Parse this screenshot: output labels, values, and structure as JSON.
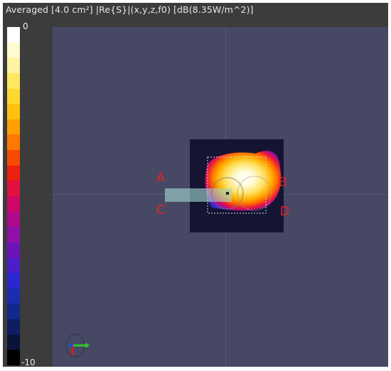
{
  "title": "Averaged [4.0 cm²] |Re{S}|(x,y,z,f0) [dB(8.35W/m^2)]",
  "colorbar": {
    "max_label": "0",
    "min_label": "-10",
    "colors": [
      "#ffffff",
      "#fffbd0",
      "#fff2a0",
      "#ffe860",
      "#ffd830",
      "#ffc010",
      "#ffa000",
      "#ff7800",
      "#f84a00",
      "#ee2010",
      "#e01040",
      "#cc0868",
      "#b00a8c",
      "#9010a8",
      "#6c14b8",
      "#4a1ec8",
      "#2a26d0",
      "#1a2cb0",
      "#12288c",
      "#0e1e60",
      "#0a1438",
      "#000000"
    ]
  },
  "corner_labels": {
    "a": "A",
    "b": "B",
    "c": "C",
    "d": "D"
  },
  "colors": {
    "panel": "#3c3c3c",
    "viewport": "#474863",
    "label_red": "#e8202a"
  },
  "axes_icon": "xyz-axes-icon"
}
